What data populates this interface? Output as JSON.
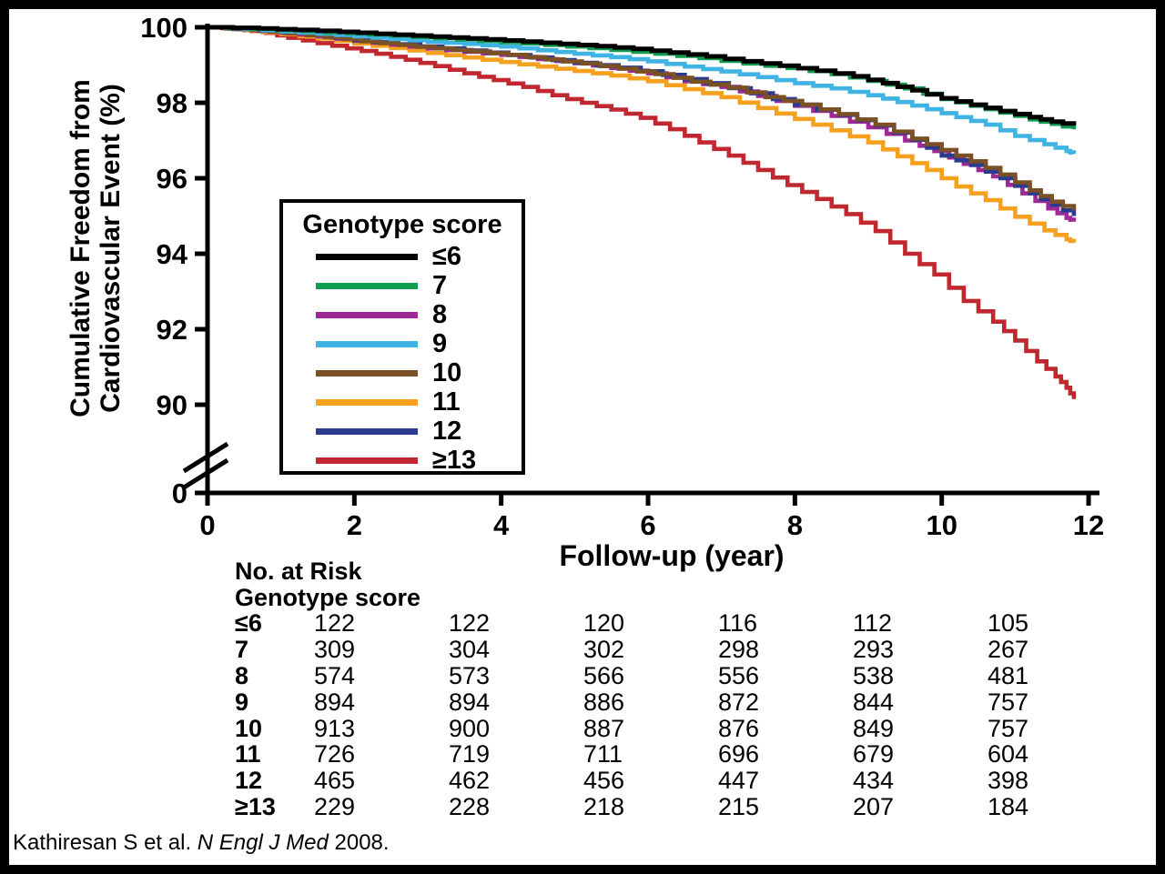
{
  "chart_data": {
    "type": "line",
    "subtype": "kaplan-meier-step",
    "title": "",
    "xlabel": "Follow-up (year)",
    "ylabel_lines": [
      "Cumulative Freedom from",
      "Cardiovascular Event (%)"
    ],
    "x_ticks": [
      0,
      2,
      4,
      6,
      8,
      10,
      12
    ],
    "y_ticks": [
      100,
      98,
      96,
      94,
      92,
      90,
      0
    ],
    "xlim": [
      0,
      12
    ],
    "ylim_main": [
      90,
      100
    ],
    "y_axis_break": true,
    "grid": false,
    "legend": {
      "title": "Genotype score",
      "position": "inside-left"
    },
    "draw_order": [
      "ge13",
      "s11",
      "s8",
      "s12",
      "s10",
      "s9",
      "s7",
      "le6"
    ],
    "series": [
      {
        "id": "le6",
        "name": "≤6",
        "color": "#000000",
        "points": [
          [
            0,
            100
          ],
          [
            0.7,
            99.97
          ],
          [
            1.2,
            99.93
          ],
          [
            1.8,
            99.88
          ],
          [
            2.3,
            99.83
          ],
          [
            2.8,
            99.78
          ],
          [
            3.3,
            99.73
          ],
          [
            3.8,
            99.68
          ],
          [
            4.3,
            99.62
          ],
          [
            4.8,
            99.56
          ],
          [
            5.3,
            99.5
          ],
          [
            5.8,
            99.43
          ],
          [
            6.3,
            99.33
          ],
          [
            6.8,
            99.23
          ],
          [
            7.3,
            99.1
          ],
          [
            7.8,
            98.98
          ],
          [
            8.3,
            98.85
          ],
          [
            8.8,
            98.7
          ],
          [
            9.2,
            98.52
          ],
          [
            9.6,
            98.33
          ],
          [
            10,
            98.12
          ],
          [
            10.4,
            97.95
          ],
          [
            10.8,
            97.78
          ],
          [
            11.2,
            97.62
          ],
          [
            11.5,
            97.5
          ],
          [
            11.8,
            97.4
          ]
        ]
      },
      {
        "id": "s7",
        "name": "7",
        "color": "#0f9d4f",
        "points": [
          [
            0,
            100
          ],
          [
            0.6,
            99.96
          ],
          [
            1.3,
            99.9
          ],
          [
            1.9,
            99.84
          ],
          [
            2.5,
            99.78
          ],
          [
            3.1,
            99.71
          ],
          [
            3.7,
            99.64
          ],
          [
            4.3,
            99.57
          ],
          [
            4.9,
            99.49
          ],
          [
            5.5,
            99.4
          ],
          [
            6.1,
            99.3
          ],
          [
            6.7,
            99.18
          ],
          [
            7.3,
            99.04
          ],
          [
            7.9,
            98.92
          ],
          [
            8.5,
            98.76
          ],
          [
            9,
            98.58
          ],
          [
            9.5,
            98.38
          ],
          [
            10,
            98.1
          ],
          [
            10.4,
            97.92
          ],
          [
            10.8,
            97.74
          ],
          [
            11.2,
            97.56
          ],
          [
            11.5,
            97.44
          ],
          [
            11.8,
            97.3
          ]
        ]
      },
      {
        "id": "s8",
        "name": "8",
        "color": "#9e2896",
        "points": [
          [
            0,
            100
          ],
          [
            0.5,
            99.94
          ],
          [
            1,
            99.86
          ],
          [
            1.5,
            99.76
          ],
          [
            2,
            99.64
          ],
          [
            2.5,
            99.54
          ],
          [
            3,
            99.44
          ],
          [
            3.5,
            99.35
          ],
          [
            4,
            99.27
          ],
          [
            4.5,
            99.16
          ],
          [
            5,
            99.05
          ],
          [
            5.5,
            98.92
          ],
          [
            6,
            98.78
          ],
          [
            6.5,
            98.57
          ],
          [
            7,
            98.42
          ],
          [
            7.5,
            98.18
          ],
          [
            8,
            97.92
          ],
          [
            8.5,
            97.65
          ],
          [
            9,
            97.35
          ],
          [
            9.5,
            97
          ],
          [
            9.9,
            96.72
          ],
          [
            10.3,
            96.38
          ],
          [
            10.7,
            96.05
          ],
          [
            11.1,
            95.6
          ],
          [
            11.45,
            95.2
          ],
          [
            11.7,
            94.95
          ],
          [
            11.8,
            94.85
          ]
        ]
      },
      {
        "id": "s9",
        "name": "9",
        "color": "#3fb3e3",
        "points": [
          [
            0,
            100
          ],
          [
            0.5,
            99.95
          ],
          [
            1,
            99.89
          ],
          [
            1.5,
            99.83
          ],
          [
            2,
            99.76
          ],
          [
            2.5,
            99.69
          ],
          [
            3,
            99.62
          ],
          [
            3.5,
            99.56
          ],
          [
            4,
            99.49
          ],
          [
            4.5,
            99.39
          ],
          [
            5,
            99.3
          ],
          [
            5.5,
            99.21
          ],
          [
            6,
            99.1
          ],
          [
            6.5,
            98.96
          ],
          [
            7,
            98.83
          ],
          [
            7.5,
            98.68
          ],
          [
            8,
            98.52
          ],
          [
            8.5,
            98.38
          ],
          [
            9,
            98.2
          ],
          [
            9.4,
            98.02
          ],
          [
            9.8,
            97.83
          ],
          [
            10.2,
            97.62
          ],
          [
            10.6,
            97.42
          ],
          [
            11,
            97.12
          ],
          [
            11.4,
            96.9
          ],
          [
            11.7,
            96.72
          ],
          [
            11.8,
            96.65
          ]
        ]
      },
      {
        "id": "s10",
        "name": "10",
        "color": "#7a5024",
        "points": [
          [
            0,
            100
          ],
          [
            0.6,
            99.93
          ],
          [
            1.1,
            99.84
          ],
          [
            1.6,
            99.74
          ],
          [
            2.1,
            99.63
          ],
          [
            2.6,
            99.53
          ],
          [
            3.1,
            99.44
          ],
          [
            3.6,
            99.36
          ],
          [
            4.1,
            99.27
          ],
          [
            4.6,
            99.15
          ],
          [
            5.1,
            99.04
          ],
          [
            5.6,
            98.9
          ],
          [
            6.1,
            98.76
          ],
          [
            6.6,
            98.56
          ],
          [
            7.1,
            98.4
          ],
          [
            7.6,
            98.15
          ],
          [
            8.1,
            97.95
          ],
          [
            8.6,
            97.7
          ],
          [
            9.1,
            97.42
          ],
          [
            9.6,
            97.05
          ],
          [
            10,
            96.75
          ],
          [
            10.4,
            96.45
          ],
          [
            10.8,
            96.1
          ],
          [
            11.2,
            95.68
          ],
          [
            11.5,
            95.38
          ],
          [
            11.8,
            95.15
          ]
        ]
      },
      {
        "id": "s11",
        "name": "11",
        "color": "#f5a11f",
        "points": [
          [
            0,
            100
          ],
          [
            0.5,
            99.92
          ],
          [
            1,
            99.82
          ],
          [
            1.5,
            99.7
          ],
          [
            2,
            99.57
          ],
          [
            2.5,
            99.45
          ],
          [
            3,
            99.32
          ],
          [
            3.5,
            99.2
          ],
          [
            4,
            99.08
          ],
          [
            4.5,
            98.96
          ],
          [
            5,
            98.84
          ],
          [
            5.5,
            98.72
          ],
          [
            6,
            98.57
          ],
          [
            6.5,
            98.36
          ],
          [
            7,
            98.15
          ],
          [
            7.5,
            97.86
          ],
          [
            8,
            97.57
          ],
          [
            8.5,
            97.27
          ],
          [
            9,
            96.95
          ],
          [
            9.4,
            96.58
          ],
          [
            9.8,
            96.22
          ],
          [
            10.2,
            95.78
          ],
          [
            10.6,
            95.42
          ],
          [
            11,
            94.98
          ],
          [
            11.4,
            94.62
          ],
          [
            11.7,
            94.38
          ],
          [
            11.8,
            94.3
          ]
        ]
      },
      {
        "id": "s12",
        "name": "12",
        "color": "#2b3b8f",
        "points": [
          [
            0,
            100
          ],
          [
            0.7,
            99.91
          ],
          [
            1.4,
            99.8
          ],
          [
            2,
            99.66
          ],
          [
            2.6,
            99.55
          ],
          [
            3.2,
            99.44
          ],
          [
            3.8,
            99.33
          ],
          [
            4.4,
            99.2
          ],
          [
            5,
            99.06
          ],
          [
            5.6,
            98.93
          ],
          [
            6.2,
            98.74
          ],
          [
            6.8,
            98.52
          ],
          [
            7.4,
            98.25
          ],
          [
            8,
            97.95
          ],
          [
            8.6,
            97.68
          ],
          [
            9.1,
            97.4
          ],
          [
            9.6,
            97.02
          ],
          [
            10,
            96.6
          ],
          [
            10.4,
            96.35
          ],
          [
            10.8,
            96
          ],
          [
            11.2,
            95.6
          ],
          [
            11.5,
            95.3
          ],
          [
            11.8,
            95
          ]
        ]
      },
      {
        "id": "ge13",
        "name": "≥13",
        "color": "#c0272f",
        "points": [
          [
            0,
            100
          ],
          [
            0.4,
            99.95
          ],
          [
            0.8,
            99.85
          ],
          [
            1.1,
            99.72
          ],
          [
            1.5,
            99.58
          ],
          [
            1.9,
            99.44
          ],
          [
            2.3,
            99.3
          ],
          [
            2.7,
            99.14
          ],
          [
            3.1,
            98.97
          ],
          [
            3.5,
            98.78
          ],
          [
            3.9,
            98.6
          ],
          [
            4.3,
            98.42
          ],
          [
            4.7,
            98.2
          ],
          [
            5.1,
            98
          ],
          [
            5.5,
            97.82
          ],
          [
            5.9,
            97.6
          ],
          [
            6.3,
            97.3
          ],
          [
            6.7,
            96.95
          ],
          [
            7.1,
            96.6
          ],
          [
            7.5,
            96.22
          ],
          [
            7.9,
            95.82
          ],
          [
            8.3,
            95.45
          ],
          [
            8.7,
            95.05
          ],
          [
            9.1,
            94.6
          ],
          [
            9.5,
            94
          ],
          [
            9.9,
            93.45
          ],
          [
            10.3,
            92.75
          ],
          [
            10.7,
            92.2
          ],
          [
            11,
            91.7
          ],
          [
            11.3,
            91.15
          ],
          [
            11.55,
            90.75
          ],
          [
            11.7,
            90.45
          ],
          [
            11.8,
            90.15
          ]
        ]
      }
    ]
  },
  "risk_table": {
    "header1": "No. at Risk",
    "header2": "Genotype score",
    "rows": [
      {
        "label": "≤6",
        "values": [
          122,
          122,
          120,
          116,
          112,
          105
        ]
      },
      {
        "label": "7",
        "values": [
          309,
          304,
          302,
          298,
          293,
          267
        ]
      },
      {
        "label": "8",
        "values": [
          574,
          573,
          566,
          556,
          538,
          481
        ]
      },
      {
        "label": "9",
        "values": [
          894,
          894,
          886,
          872,
          844,
          757
        ]
      },
      {
        "label": "10",
        "values": [
          913,
          900,
          887,
          876,
          849,
          757
        ]
      },
      {
        "label": "11",
        "values": [
          726,
          719,
          711,
          696,
          679,
          604
        ]
      },
      {
        "label": "12",
        "values": [
          465,
          462,
          456,
          447,
          434,
          398
        ]
      },
      {
        "label": "≥13",
        "values": [
          229,
          228,
          218,
          215,
          207,
          184
        ]
      }
    ]
  },
  "citation": {
    "prefix": "Kathiresan S et al. ",
    "journal": "N Engl J Med",
    "suffix": " 2008."
  },
  "colors": {
    "frame": "#000000",
    "background": "#ffffff",
    "axis": "#000000"
  }
}
